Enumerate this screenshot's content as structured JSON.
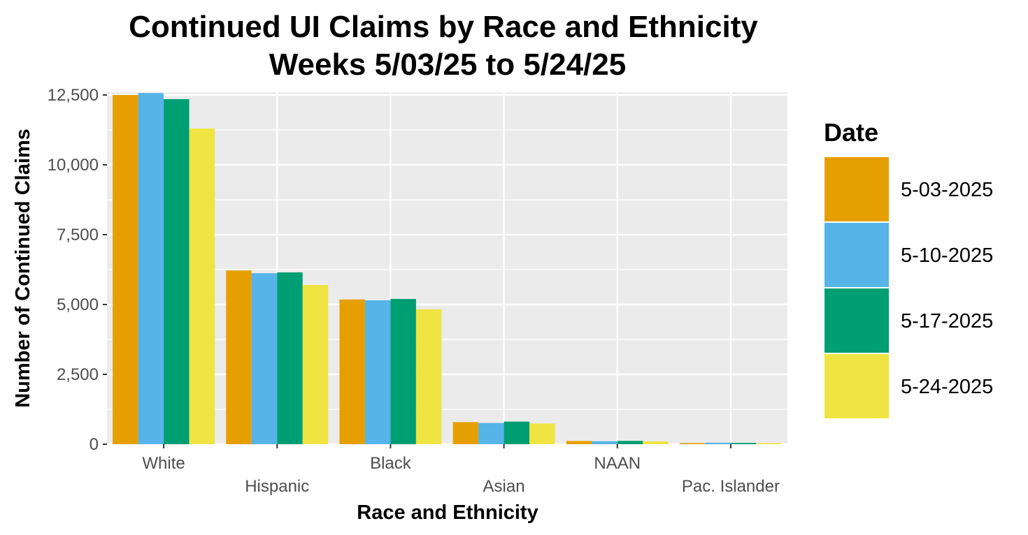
{
  "chart_data": {
    "type": "bar",
    "title": [
      "Continued UI Claims by Race and Ethnicity",
      "Weeks 5/03/25 to 5/24/25"
    ],
    "xlabel": "Race and Ethnicity",
    "ylabel": "Number of Continued Claims",
    "categories": [
      "White",
      "Hispanic",
      "Black",
      "Asian",
      "NAAN",
      "Pac. Islander"
    ],
    "ylim": [
      0,
      12600
    ],
    "yticks": [
      0,
      2500,
      5000,
      7500,
      10000,
      12500
    ],
    "ytick_labels": [
      "0",
      "2,500",
      "5,000",
      "7,500",
      "10,000",
      "12,500"
    ],
    "grid": true,
    "legend": {
      "title": "Date",
      "position": "right"
    },
    "series": [
      {
        "name": "5-03-2025",
        "color": "#E69F00",
        "values": [
          12500,
          6220,
          5180,
          790,
          115,
          40
        ]
      },
      {
        "name": "5-10-2025",
        "color": "#56B4E9",
        "values": [
          12570,
          6120,
          5150,
          760,
          105,
          55
        ]
      },
      {
        "name": "5-17-2025",
        "color": "#009E73",
        "values": [
          12350,
          6150,
          5200,
          810,
          120,
          45
        ]
      },
      {
        "name": "5-24-2025",
        "color": "#F0E442",
        "values": [
          11300,
          5700,
          4830,
          740,
          100,
          40
        ]
      }
    ]
  }
}
